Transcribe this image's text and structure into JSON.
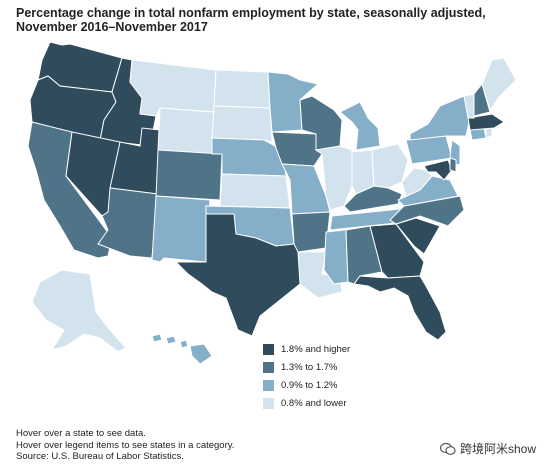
{
  "title": "Percentage change in total nonfarm employment by state, seasonally adjusted, November 2016–November 2017",
  "legend": [
    {
      "label": "1.8% and higher",
      "color": "#2f4b5c"
    },
    {
      "label": "1.3% to 1.7%",
      "color": "#4f7488"
    },
    {
      "label": "0.9% to 1.2%",
      "color": "#85aec8"
    },
    {
      "label": "0.8% and lower",
      "color": "#d3e3ee"
    }
  ],
  "notes": {
    "hover_state": "Hover over a state to see data.",
    "hover_legend": "Hover over legend items to see states in a category.",
    "source": "Source: U.S. Bureau of Labor Statistics."
  },
  "watermark": "跨境阿米show",
  "colors": {
    "c1": "#2f4b5c",
    "c2": "#4f7488",
    "c3": "#85aec8",
    "c4": "#d3e3ee"
  },
  "states": {
    "WA": "c1",
    "OR": "c1",
    "ID": "c1",
    "NV": "c1",
    "UT": "c1",
    "TX": "c1",
    "GA": "c1",
    "SC": "c1",
    "FL": "c1",
    "MA": "c1",
    "MD": "c1",
    "CA": "c2",
    "AZ": "c2",
    "CO": "c2",
    "IA": "c2",
    "WI": "c2",
    "AR": "c2",
    "KY": "c2",
    "NC": "c2",
    "AL": "c2",
    "NH": "c2",
    "DE": "c2",
    "NM": "c3",
    "NE": "c3",
    "MN": "c3",
    "MO": "c3",
    "OK": "c3",
    "MI": "c3",
    "TN": "c3",
    "MS": "c3",
    "VA": "c3",
    "NY": "c3",
    "PA": "c3",
    "NJ": "c3",
    "CT": "c3",
    "SD": "c4",
    "VT": "c4",
    "HI": "c3",
    "MT": "c4",
    "WY": "c4",
    "ND": "c4",
    "KS": "c4",
    "IL": "c4",
    "IN": "c4",
    "OH": "c4",
    "WV": "c4",
    "LA": "c4",
    "ME": "c4",
    "AK": "c4",
    "RI": "c4"
  }
}
